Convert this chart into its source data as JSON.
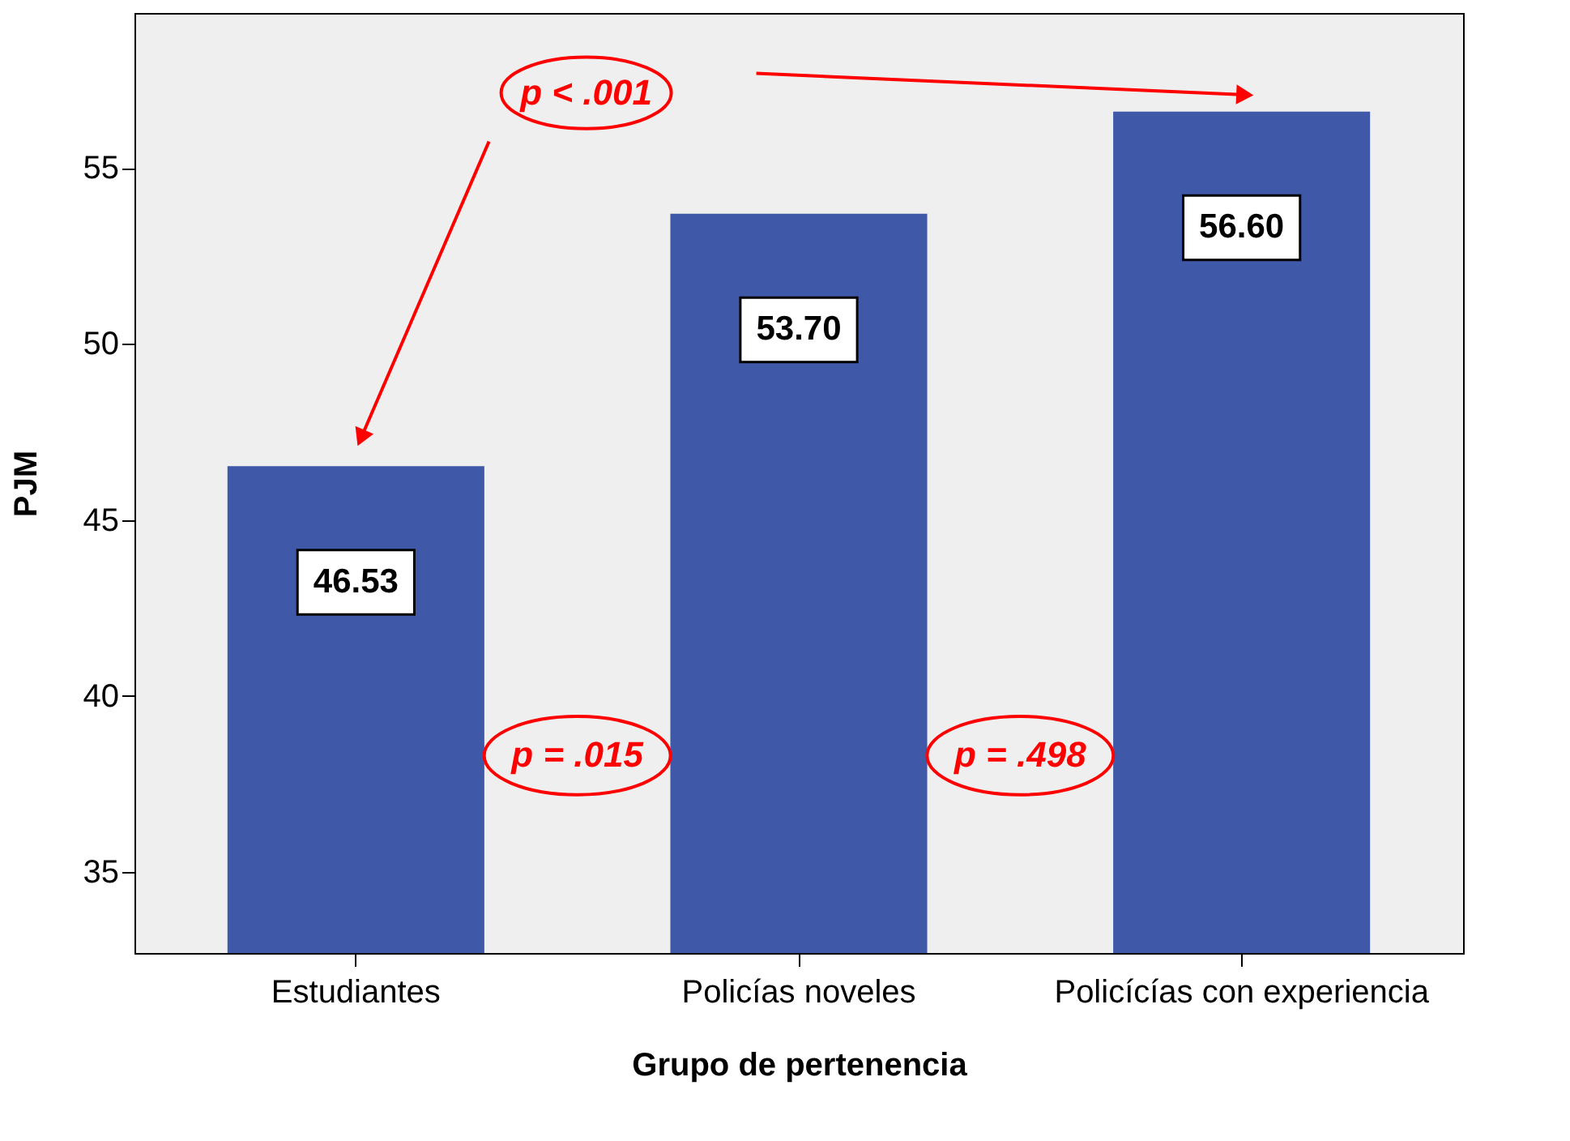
{
  "chart_data": {
    "type": "bar",
    "xlabel": "Grupo de pertenencia",
    "ylabel": "PJM",
    "categories": [
      "Estudiantes",
      "Policías noveles",
      "Policícías con experiencia"
    ],
    "values": [
      46.53,
      53.7,
      56.6
    ],
    "value_labels": [
      "46.53",
      "53.70",
      "56.60"
    ],
    "color": "#3f58a8",
    "ylim": [
      32.7,
      59.4
    ],
    "yticks": [
      35,
      40,
      45,
      50,
      55
    ],
    "grid": false,
    "annotations": [
      "p < .001",
      "p = .015",
      "p = .498"
    ]
  }
}
